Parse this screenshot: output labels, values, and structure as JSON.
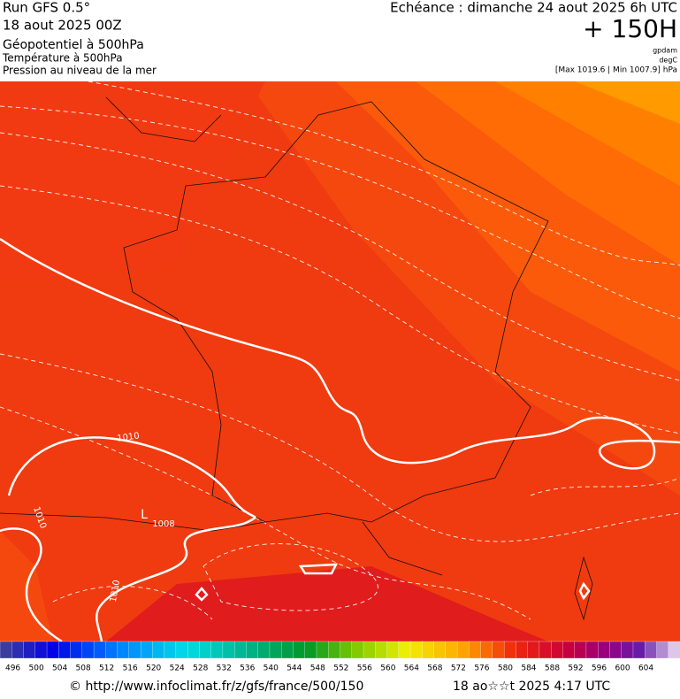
{
  "header": {
    "run": "Run GFS 0.5°",
    "run_date": "18 aout 2025 00Z",
    "field_main": "Géopotentiel à 500hPa",
    "field_temp": "Température à 500hPa",
    "field_pressure": "Pression au niveau de la mer",
    "valid": "Echéance : dimanche 24 aout 2025 6h UTC",
    "lead": "+ 150H",
    "unit_geo": "gpdam",
    "unit_temp": "degC",
    "pressure_range": "[Max 1019.6 | Min 1007.9] hPa"
  },
  "map": {
    "contour_labels": [
      "1010",
      "1010",
      "1010",
      "1008",
      "L"
    ]
  },
  "scale": {
    "labels": [
      496,
      500,
      504,
      508,
      512,
      516,
      520,
      524,
      528,
      532,
      536,
      540,
      544,
      548,
      552,
      556,
      560,
      564,
      568,
      572,
      576,
      580,
      584,
      588,
      592,
      596,
      600,
      604
    ]
  },
  "footer": {
    "source": "© http://www.infoclimat.fr/z/gfs/france/500/150",
    "generated": "18 ao☆☆t 2025  4:17 UTC"
  }
}
